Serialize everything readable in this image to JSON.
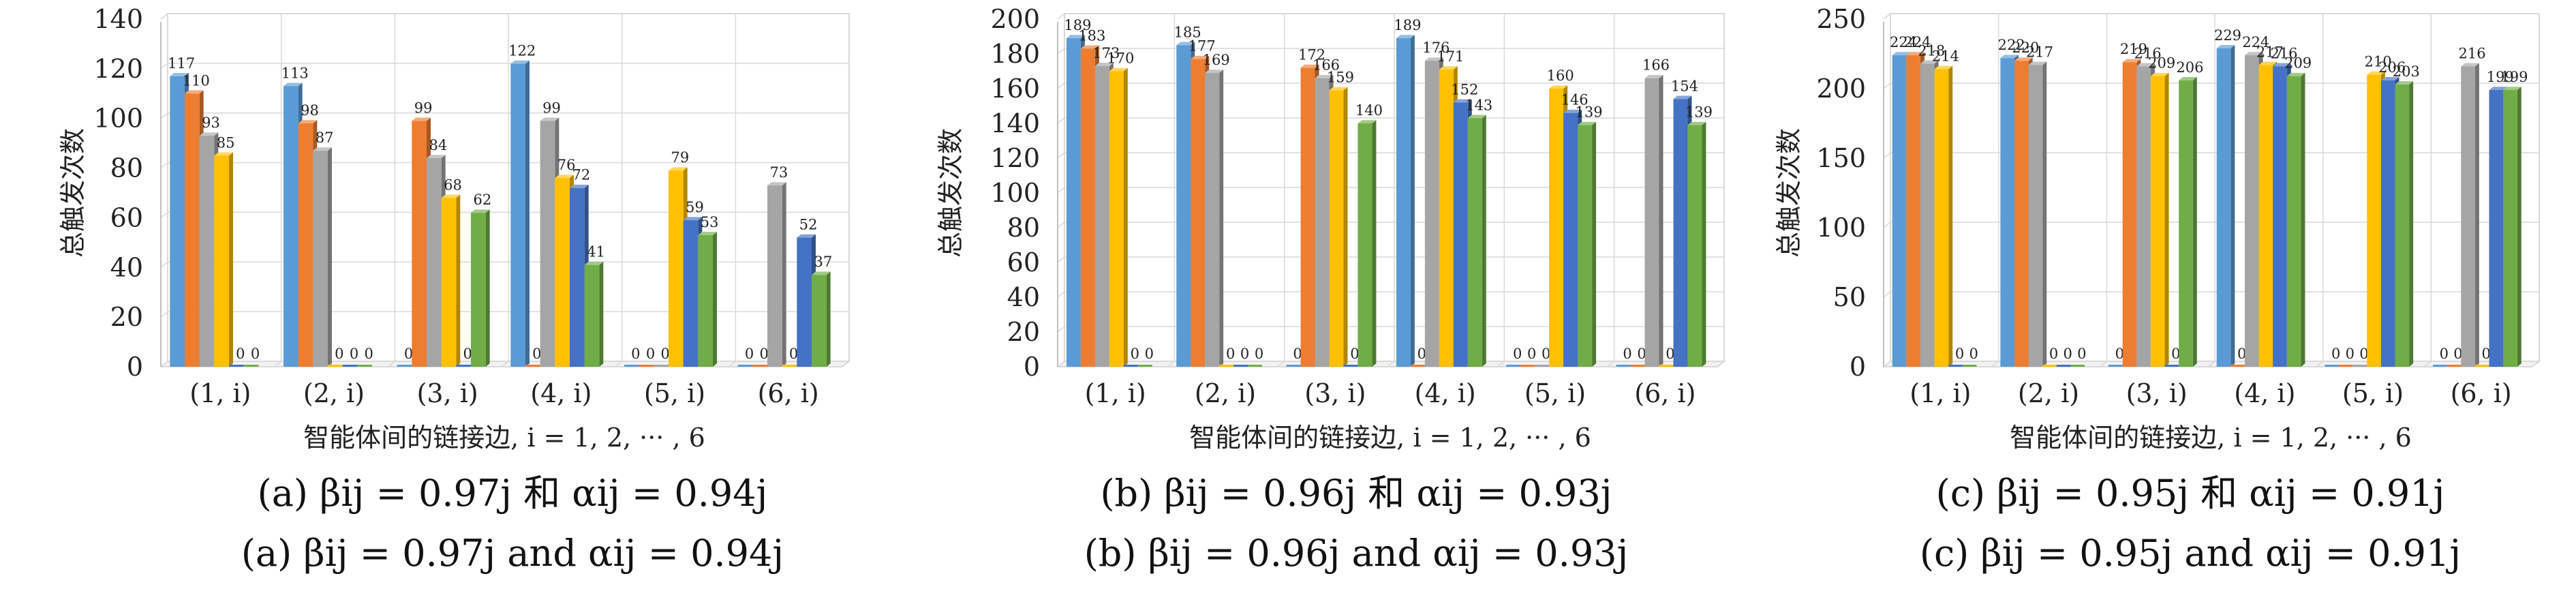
{
  "colors": [
    "#5b9bd5",
    "#ed7d31",
    "#a5a5a5",
    "#ffc000",
    "#4472c4",
    "#70ad47"
  ],
  "chart_data": [
    {
      "type": "bar",
      "categories": [
        "(1, i)",
        "(2, i)",
        "(3, i)",
        "(4, i)",
        "(5, i)",
        "(6, i)"
      ],
      "ylim": [
        0,
        140
      ],
      "yticks": [
        0,
        20,
        40,
        60,
        80,
        100,
        120,
        140
      ],
      "ylabel": "总触发次数",
      "xlabel": "智能体间的链接边, i = 1, 2, ··· , 6",
      "grid": true,
      "series": [
        {
          "values": [
            117,
            113,
            0,
            122,
            0,
            0
          ]
        },
        {
          "values": [
            110,
            98,
            99,
            0,
            0,
            0
          ]
        },
        {
          "values": [
            93,
            87,
            84,
            99,
            0,
            73
          ]
        },
        {
          "values": [
            85,
            0,
            68,
            76,
            79,
            0
          ]
        },
        {
          "values": [
            0,
            0,
            0,
            72,
            59,
            52
          ]
        },
        {
          "values": [
            0,
            0,
            62,
            41,
            53,
            37
          ]
        }
      ],
      "caption_cn": "(a) βij = 0.97j 和 αij = 0.94j",
      "caption_en": "(a) βij = 0.97j and αij = 0.94j"
    },
    {
      "type": "bar",
      "categories": [
        "(1, i)",
        "(2, i)",
        "(3, i)",
        "(4, i)",
        "(5, i)",
        "(6, i)"
      ],
      "ylim": [
        0,
        200
      ],
      "yticks": [
        0,
        20,
        40,
        60,
        80,
        100,
        120,
        140,
        160,
        180,
        200
      ],
      "ylabel": "总触发次数",
      "xlabel": "智能体间的链接边, i = 1, 2, ··· , 6",
      "grid": true,
      "series": [
        {
          "values": [
            189,
            185,
            0,
            189,
            0,
            0
          ]
        },
        {
          "values": [
            183,
            177,
            172,
            0,
            0,
            0
          ]
        },
        {
          "values": [
            173,
            169,
            166,
            176,
            0,
            166
          ]
        },
        {
          "values": [
            170,
            0,
            159,
            171,
            160,
            0
          ]
        },
        {
          "values": [
            0,
            0,
            0,
            152,
            146,
            154
          ]
        },
        {
          "values": [
            0,
            0,
            140,
            143,
            139,
            139
          ]
        }
      ],
      "caption_cn": "(b) βij = 0.96j 和 αij = 0.93j",
      "caption_en": "(b) βij = 0.96j and αij = 0.93j"
    },
    {
      "type": "bar",
      "categories": [
        "(1, i)",
        "(2, i)",
        "(3, i)",
        "(4, i)",
        "(5, i)",
        "(6, i)"
      ],
      "ylim": [
        0,
        250
      ],
      "yticks": [
        0,
        50,
        100,
        150,
        200,
        250
      ],
      "ylabel": "总触发次数",
      "xlabel": "智能体间的链接边, i = 1, 2, ··· , 6",
      "grid": true,
      "series": [
        {
          "values": [
            224,
            222,
            0,
            229,
            0,
            0
          ]
        },
        {
          "values": [
            224,
            220,
            219,
            0,
            0,
            0
          ]
        },
        {
          "values": [
            218,
            217,
            216,
            224,
            0,
            216
          ]
        },
        {
          "values": [
            214,
            0,
            209,
            217,
            210,
            0
          ]
        },
        {
          "values": [
            0,
            0,
            0,
            216,
            206,
            199
          ]
        },
        {
          "values": [
            0,
            0,
            206,
            209,
            203,
            199
          ]
        }
      ],
      "caption_cn": "(c) βij = 0.95j 和 αij = 0.91j",
      "caption_en": "(c) βij = 0.95j and αij = 0.91j"
    }
  ]
}
